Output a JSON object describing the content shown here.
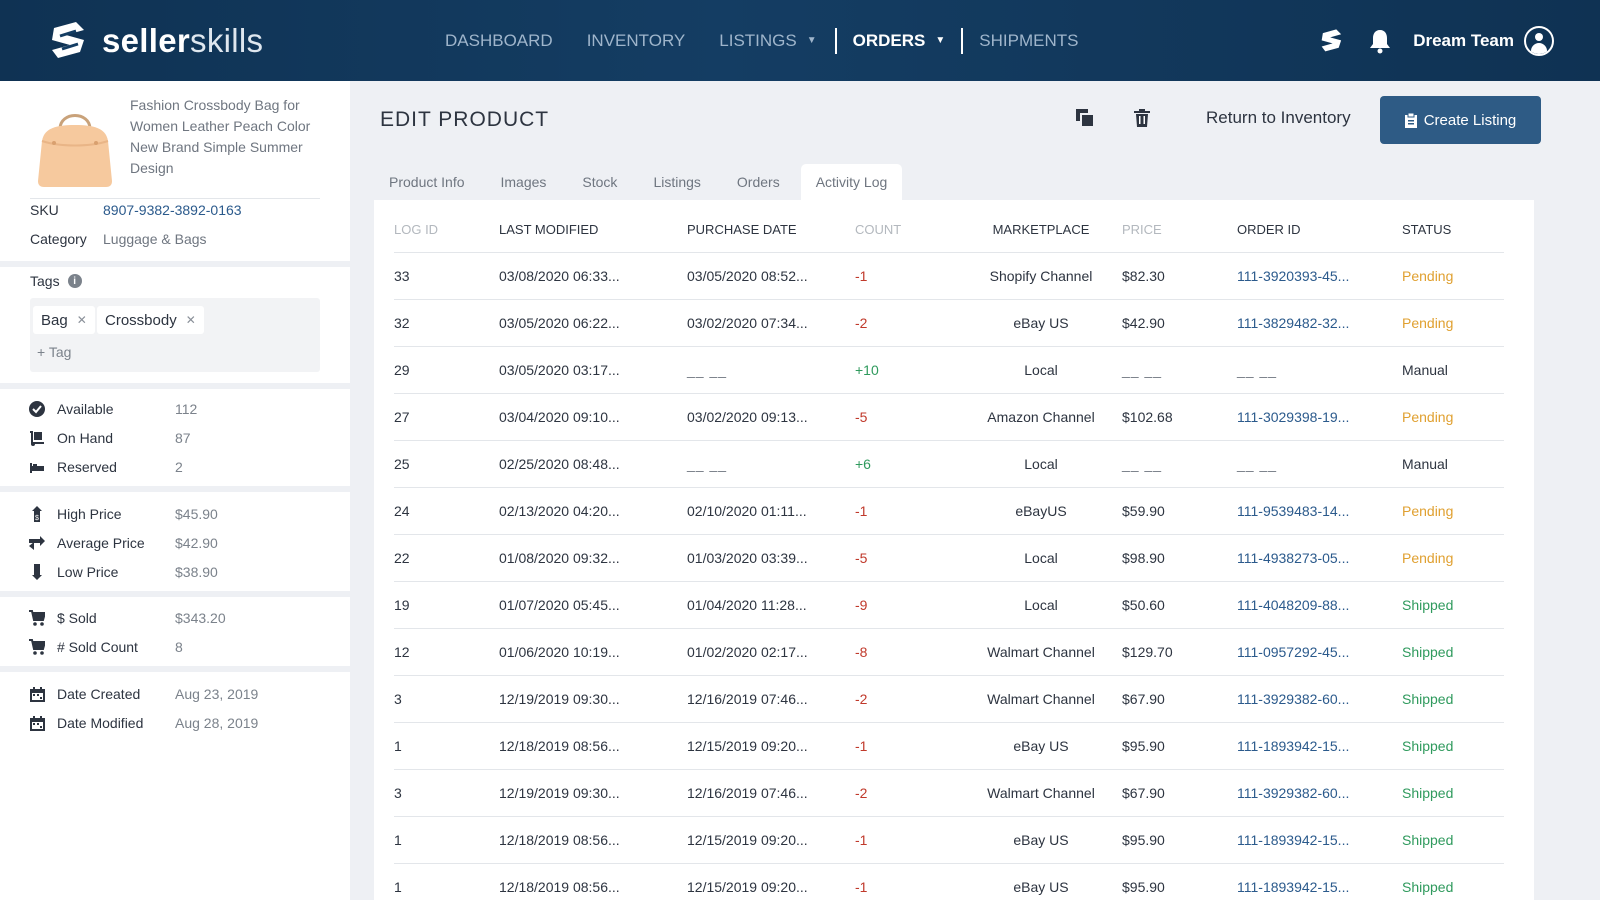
{
  "header": {
    "brand_bold": "seller",
    "brand_light": "skills",
    "nav": [
      {
        "label": "DASHBOARD"
      },
      {
        "label": "INVENTORY"
      },
      {
        "label": "LISTINGS"
      },
      {
        "label": "ORDERS"
      },
      {
        "label": "SHIPMENTS"
      }
    ],
    "user_name": "Dream Team"
  },
  "product": {
    "title": "Fashion Crossbody Bag for Women Leather Peach Color New Brand Simple Summer Design",
    "sku_label": "SKU",
    "sku": "8907-9382-3892-0163",
    "category_label": "Category",
    "category": "Luggage & Bags",
    "tags_label": "Tags",
    "tags": [
      "Bag",
      "Crossbody"
    ],
    "add_tag": "+ Tag"
  },
  "stats": {
    "stock": [
      {
        "label": "Available",
        "value": "112"
      },
      {
        "label": "On Hand",
        "value": "87"
      },
      {
        "label": "Reserved",
        "value": "2"
      }
    ],
    "prices": [
      {
        "label": "High Price",
        "value": "$45.90"
      },
      {
        "label": "Average Price",
        "value": "$42.90"
      },
      {
        "label": "Low Price",
        "value": "$38.90"
      }
    ],
    "sales": [
      {
        "label": "$ Sold",
        "value": "$343.20"
      },
      {
        "label": "# Sold Count",
        "value": "8"
      }
    ],
    "dates": [
      {
        "label": "Date Created",
        "value": "Aug 23, 2019"
      },
      {
        "label": "Date Modified",
        "value": "Aug 28, 2019"
      }
    ]
  },
  "main": {
    "title": "EDIT PRODUCT",
    "return_label": "Return to Inventory",
    "create_label": "Create Listing",
    "tabs": [
      "Product Info",
      "Images",
      "Stock",
      "Listings",
      "Orders",
      "Activity Log"
    ],
    "active_tab": "Activity Log"
  },
  "table": {
    "columns": [
      "LOG ID",
      "LAST MODIFIED",
      "PURCHASE DATE",
      "COUNT",
      "MARKETPLACE",
      "PRICE",
      "ORDER ID",
      "STATUS"
    ],
    "rows": [
      {
        "id": "33",
        "modified": "03/08/2020 06:33...",
        "purchase": "03/05/2020 08:52...",
        "count": "-1",
        "marketplace": "Shopify Channel",
        "price": "$82.30",
        "order": "111-3920393-45...",
        "status": "Pending"
      },
      {
        "id": "32",
        "modified": "03/05/2020 06:22...",
        "purchase": "03/02/2020 07:34...",
        "count": "-2",
        "marketplace": "eBay US",
        "price": "$42.90",
        "order": "111-3829482-32...",
        "status": "Pending"
      },
      {
        "id": "29",
        "modified": "03/05/2020 03:17...",
        "purchase": "__ __",
        "count": "+10",
        "marketplace": "Local",
        "price": "__ __",
        "order": "__ __",
        "status": "Manual"
      },
      {
        "id": "27",
        "modified": "03/04/2020 09:10...",
        "purchase": "03/02/2020 09:13...",
        "count": "-5",
        "marketplace": "Amazon Channel",
        "price": "$102.68",
        "order": "111-3029398-19...",
        "status": "Pending"
      },
      {
        "id": "25",
        "modified": "02/25/2020 08:48...",
        "purchase": "__ __",
        "count": "+6",
        "marketplace": "Local",
        "price": "__ __",
        "order": "__ __",
        "status": "Manual"
      },
      {
        "id": "24",
        "modified": "02/13/2020 04:20...",
        "purchase": "02/10/2020 01:11...",
        "count": "-1",
        "marketplace": "eBayUS",
        "price": "$59.90",
        "order": "111-9539483-14...",
        "status": "Pending"
      },
      {
        "id": "22",
        "modified": "01/08/2020 09:32...",
        "purchase": "01/03/2020 03:39...",
        "count": "-5",
        "marketplace": "Local",
        "price": "$98.90",
        "order": "111-4938273-05...",
        "status": "Pending"
      },
      {
        "id": "19",
        "modified": "01/07/2020 05:45...",
        "purchase": "01/04/2020 11:28...",
        "count": "-9",
        "marketplace": "Local",
        "price": "$50.60",
        "order": "111-4048209-88...",
        "status": "Shipped"
      },
      {
        "id": "12",
        "modified": "01/06/2020 10:19...",
        "purchase": "01/02/2020 02:17...",
        "count": "-8",
        "marketplace": "Walmart Channel",
        "price": "$129.70",
        "order": "111-0957292-45...",
        "status": "Shipped"
      },
      {
        "id": "3",
        "modified": "12/19/2019 09:30...",
        "purchase": "12/16/2019 07:46...",
        "count": "-2",
        "marketplace": "Walmart Channel",
        "price": "$67.90",
        "order": "111-3929382-60...",
        "status": "Shipped"
      },
      {
        "id": "1",
        "modified": "12/18/2019 08:56...",
        "purchase": "12/15/2019 09:20...",
        "count": "-1",
        "marketplace": "eBay US",
        "price": "$95.90",
        "order": "111-1893942-15...",
        "status": "Shipped"
      },
      {
        "id": "3",
        "modified": "12/19/2019 09:30...",
        "purchase": "12/16/2019 07:46...",
        "count": "-2",
        "marketplace": "Walmart Channel",
        "price": "$67.90",
        "order": "111-3929382-60...",
        "status": "Shipped"
      },
      {
        "id": "1",
        "modified": "12/18/2019 08:56...",
        "purchase": "12/15/2019 09:20...",
        "count": "-1",
        "marketplace": "eBay US",
        "price": "$95.90",
        "order": "111-1893942-15...",
        "status": "Shipped"
      },
      {
        "id": "1",
        "modified": "12/18/2019 08:56...",
        "purchase": "12/15/2019 09:20...",
        "count": "-1",
        "marketplace": "eBay US",
        "price": "$95.90",
        "order": "111-1893942-15...",
        "status": "Shipped"
      }
    ]
  },
  "colors": {
    "header_bg": "#143d63",
    "primary_button": "#2e5b85",
    "link": "#2b5a8c",
    "pending": "#e0a030",
    "shipped": "#2f9a5d",
    "negative": "#c0392b"
  }
}
